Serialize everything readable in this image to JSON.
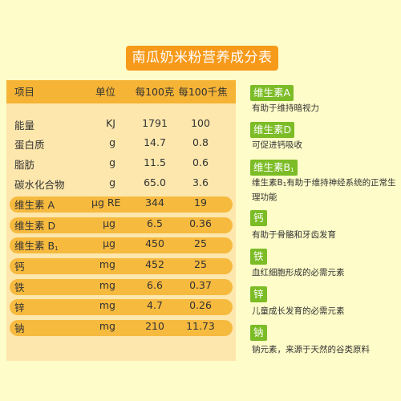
{
  "title": "南瓜奶米粉营养成分表",
  "table": {
    "headers": [
      "项目",
      "单位",
      "每100克",
      "每100千焦"
    ],
    "rows": [
      {
        "name": "能量",
        "unit": "KJ",
        "per100g": "1791",
        "per100kj": "100"
      },
      {
        "name": "蛋白质",
        "unit": "g",
        "per100g": "14.7",
        "per100kj": "0.8"
      },
      {
        "name": "脂肪",
        "unit": "g",
        "per100g": "11.5",
        "per100kj": "0.6"
      },
      {
        "name": "碳水化合物",
        "unit": "g",
        "per100g": "65.0",
        "per100kj": "3.6"
      },
      {
        "name": "维生素 A",
        "unit": "μg RE",
        "per100g": "344",
        "per100kj": "19"
      },
      {
        "name": "维生素 D",
        "unit": "μg",
        "per100g": "6.5",
        "per100kj": "0.36"
      },
      {
        "name": "维生素 B",
        "name_sub": "1",
        "unit": "μg",
        "per100g": "450",
        "per100kj": "25"
      },
      {
        "name": "钙",
        "unit": "mg",
        "per100g": "452",
        "per100kj": "25"
      },
      {
        "name": "铁",
        "unit": "mg",
        "per100g": "6.6",
        "per100kj": "0.37"
      },
      {
        "name": "锌",
        "unit": "mg",
        "per100g": "4.7",
        "per100kj": "0.26"
      },
      {
        "name": "钠",
        "unit": "mg",
        "per100g": "210",
        "per100kj": "11.73"
      }
    ]
  },
  "nutrients": [
    {
      "tag": "维生素A",
      "desc": "有助于维持暗视力"
    },
    {
      "tag": "维生素D",
      "desc": "可促进钙吸收"
    },
    {
      "tag": "维生素B",
      "tag_sub": "1",
      "desc_pre": "维生素B",
      "desc_sub": "1",
      "desc": "有助于维持神经系统的正常生理功能"
    },
    {
      "tag": "钙",
      "desc": "有助于骨骼和牙齿发育"
    },
    {
      "tag": "铁",
      "desc": "血红细胞形成的必需元素"
    },
    {
      "tag": "锌",
      "desc": "儿童成长发育的必需元素"
    },
    {
      "tag": "钠",
      "desc": "钠元素，来源于天然的谷类原料"
    }
  ],
  "colors": {
    "orange": "#f79a1a",
    "band": "#f6ba3f",
    "green": "#7cbc26",
    "panel": "#fde7ad"
  }
}
